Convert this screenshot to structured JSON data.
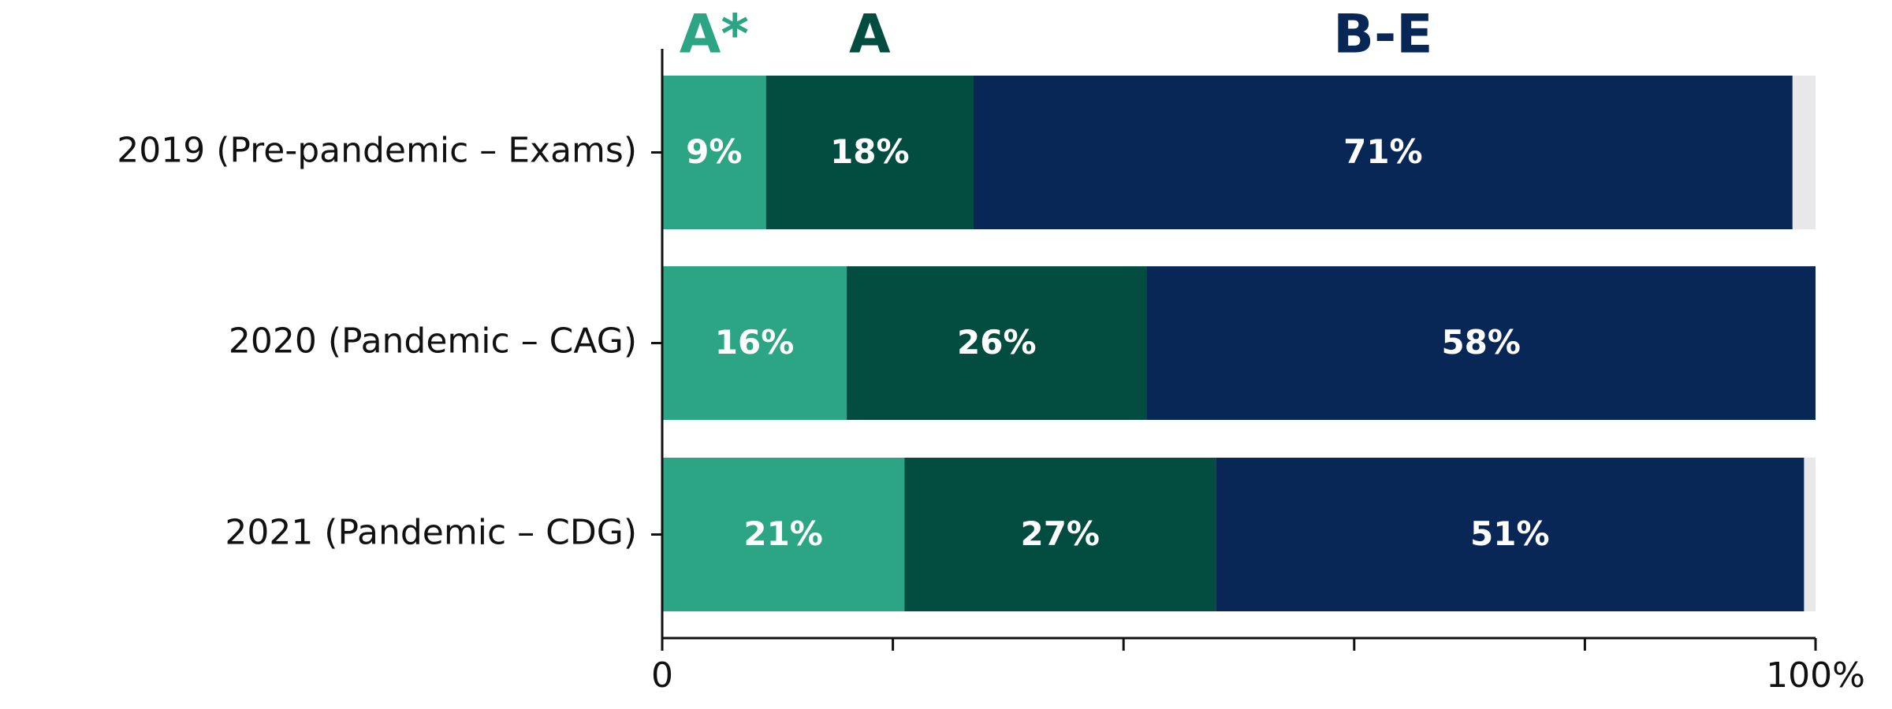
{
  "chart_data": {
    "type": "stacked-bar-horizontal",
    "categories": [
      "2019 (Pre-pandemic – Exams)",
      "2020 (Pandemic – CAG)",
      "2021 (Pandemic – CDG)"
    ],
    "series": [
      {
        "name": "A*",
        "color": "#2ca585",
        "values": [
          9,
          16,
          21
        ],
        "value_labels": [
          "9%",
          "16%",
          "21%"
        ]
      },
      {
        "name": "A",
        "color": "#034d40",
        "values": [
          18,
          26,
          27
        ],
        "value_labels": [
          "18%",
          "26%",
          "27%"
        ]
      },
      {
        "name": "B-E",
        "color": "#082757",
        "values": [
          71,
          58,
          51
        ],
        "value_labels": [
          "71%",
          "58%",
          "51%"
        ]
      }
    ],
    "track_color": "#e8e8ea",
    "xlim": [
      0,
      100
    ],
    "xticks": [
      0,
      {
        "value": 100,
        "label": "100%"
      }
    ],
    "xminor_ticks": [
      20,
      40,
      60,
      80
    ]
  }
}
